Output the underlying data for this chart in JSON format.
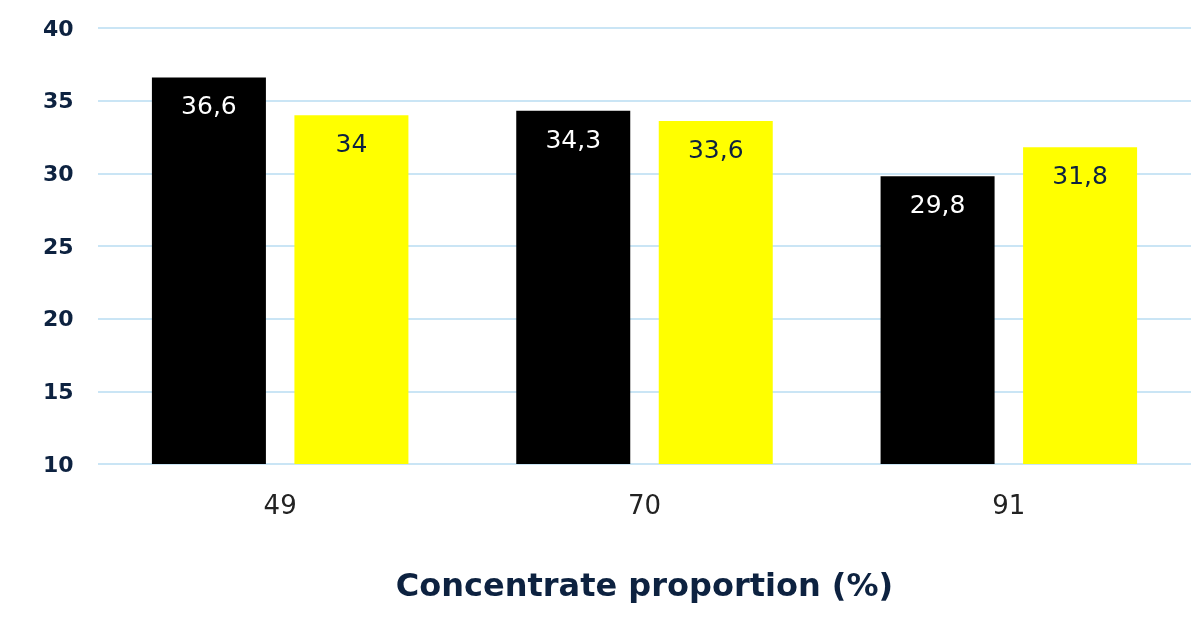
{
  "chart_data": {
    "type": "bar",
    "xlabel": "Concentrate proportion (%)",
    "categories": [
      "49",
      "70",
      "91"
    ],
    "series": [
      {
        "color": "#000000",
        "values": [
          36.6,
          34.3,
          29.8
        ],
        "value_labels": [
          "36,6",
          "34,3",
          "29,8"
        ]
      },
      {
        "color": "#ffff00",
        "values": [
          34,
          33.6,
          31.8
        ],
        "value_labels": [
          "34",
          "33,6",
          "31,8"
        ]
      }
    ],
    "ylim": [
      10,
      40
    ],
    "yticks": [
      10,
      15,
      20,
      25,
      30,
      35,
      40
    ],
    "grid": "y"
  }
}
